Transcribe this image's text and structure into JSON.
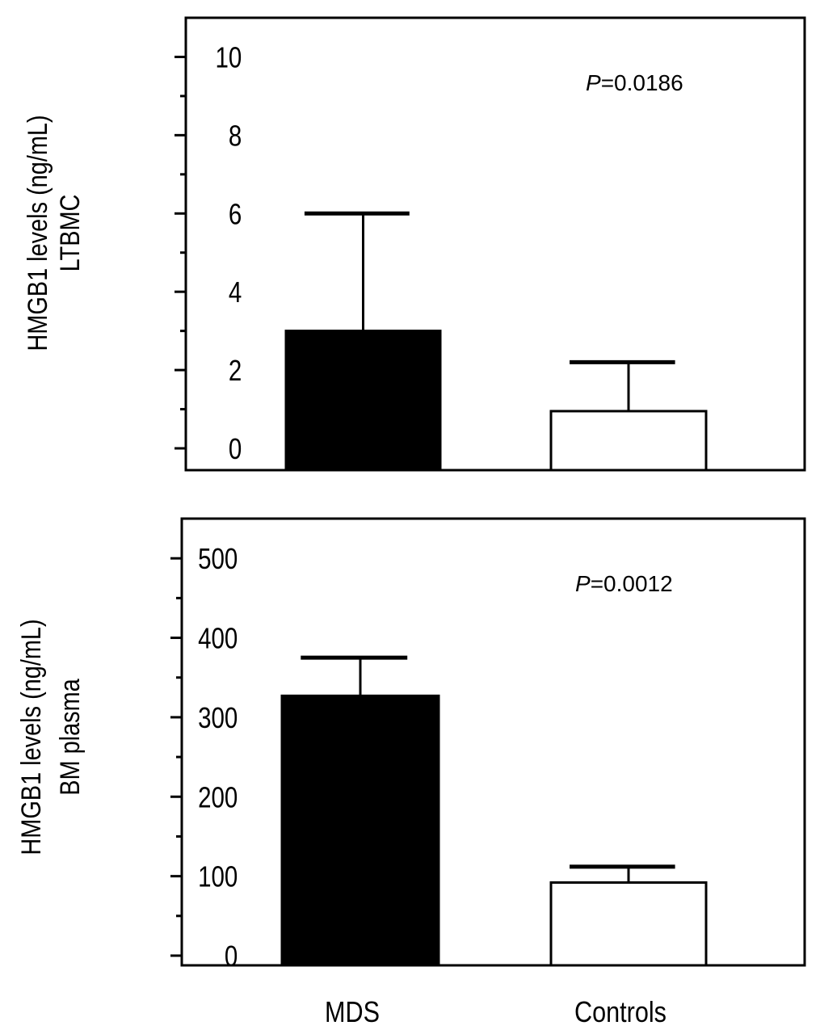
{
  "chart_data": [
    {
      "type": "bar",
      "title": "",
      "ylabel_lines": [
        "HMGB1 levels (ng/mL)",
        "LTBMC"
      ],
      "xlabel": "",
      "ylim": [
        0,
        11
      ],
      "yticks": [
        0,
        2,
        4,
        6,
        8,
        10
      ],
      "yticks_minor": [
        1,
        3,
        5,
        7,
        9
      ],
      "categories": [
        "MDS",
        "Controls"
      ],
      "values": [
        3.0,
        0.95
      ],
      "errors": [
        3.0,
        1.25
      ],
      "fill_colors": [
        "#000000",
        "#ffffff"
      ],
      "annotation": {
        "p_label": "P",
        "p_value": "=0.0186"
      },
      "show_category_labels": false
    },
    {
      "type": "bar",
      "title": "",
      "ylabel_lines": [
        "HMGB1 levels (ng/mL)",
        "BM plasma"
      ],
      "xlabel": "",
      "ylim": [
        0,
        550
      ],
      "yticks": [
        0,
        100,
        200,
        300,
        400,
        500
      ],
      "yticks_minor": [
        50,
        150,
        250,
        350,
        450
      ],
      "categories": [
        "MDS",
        "Controls"
      ],
      "values": [
        327,
        92
      ],
      "errors": [
        48,
        20
      ],
      "fill_colors": [
        "#000000",
        "#ffffff"
      ],
      "annotation": {
        "p_label": "P",
        "p_value": "=0.0012"
      },
      "show_category_labels": true
    }
  ]
}
